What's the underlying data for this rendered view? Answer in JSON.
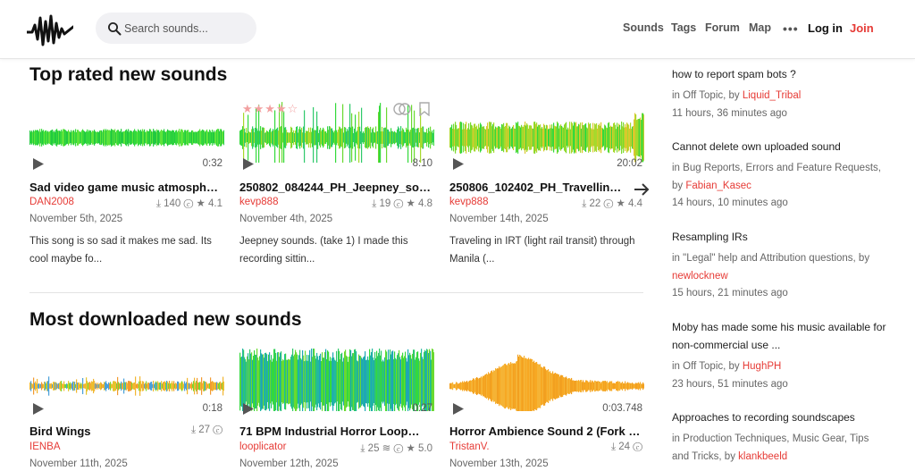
{
  "header": {
    "search_placeholder": "Search sounds...",
    "nav": [
      "Sounds",
      "Tags",
      "Forum",
      "Map"
    ],
    "more": "•••",
    "login": "Log in",
    "join": "Join"
  },
  "top_rated": {
    "title": "Top rated new sounds",
    "sounds": [
      {
        "duration": "0:32",
        "title": "Sad video game music atmospher...",
        "author": "DAN2008",
        "downloads": "140",
        "rating": "4.1",
        "date": "November 5th, 2025",
        "description": "This song is so sad it makes me sad. Its cool maybe fo..."
      },
      {
        "duration": "8:10",
        "title": "250802_084244_PH_Jeepney_sou...",
        "author": "kevp888",
        "downloads": "19",
        "rating": "4.8",
        "date": "November 4th, 2025",
        "description": "Jeepney sounds. (take 1) I made this recording sittin..."
      },
      {
        "duration": "20:02",
        "title": "250806_102402_PH_Travelling_in_...",
        "author": "kevp888",
        "downloads": "22",
        "rating": "4.4",
        "date": "November 14th, 2025",
        "description": "Traveling in IRT (light rail transit) through Manila (..."
      }
    ]
  },
  "most_downloaded": {
    "title": "Most downloaded new sounds",
    "sounds": [
      {
        "duration": "0:18",
        "title": "Bird Wings",
        "author": "IENBA",
        "downloads": "27",
        "date": "November 11th, 2025"
      },
      {
        "duration": "0:27",
        "title": "71 BPM Industrial Horror Loop #1...",
        "author": "looplicator",
        "downloads": "25",
        "rating": "5.0",
        "date": "November 12th, 2025"
      },
      {
        "duration": "0:03.748",
        "title": "Horror Ambience Sound 2 (Fork o...",
        "author": "TristanV.",
        "downloads": "24",
        "date": "November 13th, 2025"
      }
    ]
  },
  "forum": [
    {
      "title": "how to report spam bots ?",
      "in": "in ",
      "forum": "Off Topic",
      "by": ", by ",
      "user": "Liquid_Tribal",
      "time": "11 hours, 36 minutes ago"
    },
    {
      "title": "Cannot delete own uploaded sound",
      "in": "in ",
      "forum": "Bug Reports, Errors and Feature Requests",
      "by": ", by ",
      "user": "Fabian_Kasec",
      "time": "14 hours, 10 minutes ago"
    },
    {
      "title": "Resampling IRs",
      "in": "in ",
      "forum": "\"Legal\" help and Attribution questions",
      "by": ", by ",
      "user": "newlocknew",
      "time": "15 hours, 21 minutes ago"
    },
    {
      "title": "Moby has made some his music available for non-commercial use ...",
      "in": "in ",
      "forum": "Off Topic",
      "by": ", by ",
      "user": "HughPH",
      "time": "23 hours, 51 minutes ago"
    },
    {
      "title": "Approaches to recording soundscapes",
      "in": "in ",
      "forum": "Production Techniques, Music Gear, Tips and Tricks",
      "by": ", by ",
      "user": "klankbeeld",
      "time": ""
    }
  ]
}
